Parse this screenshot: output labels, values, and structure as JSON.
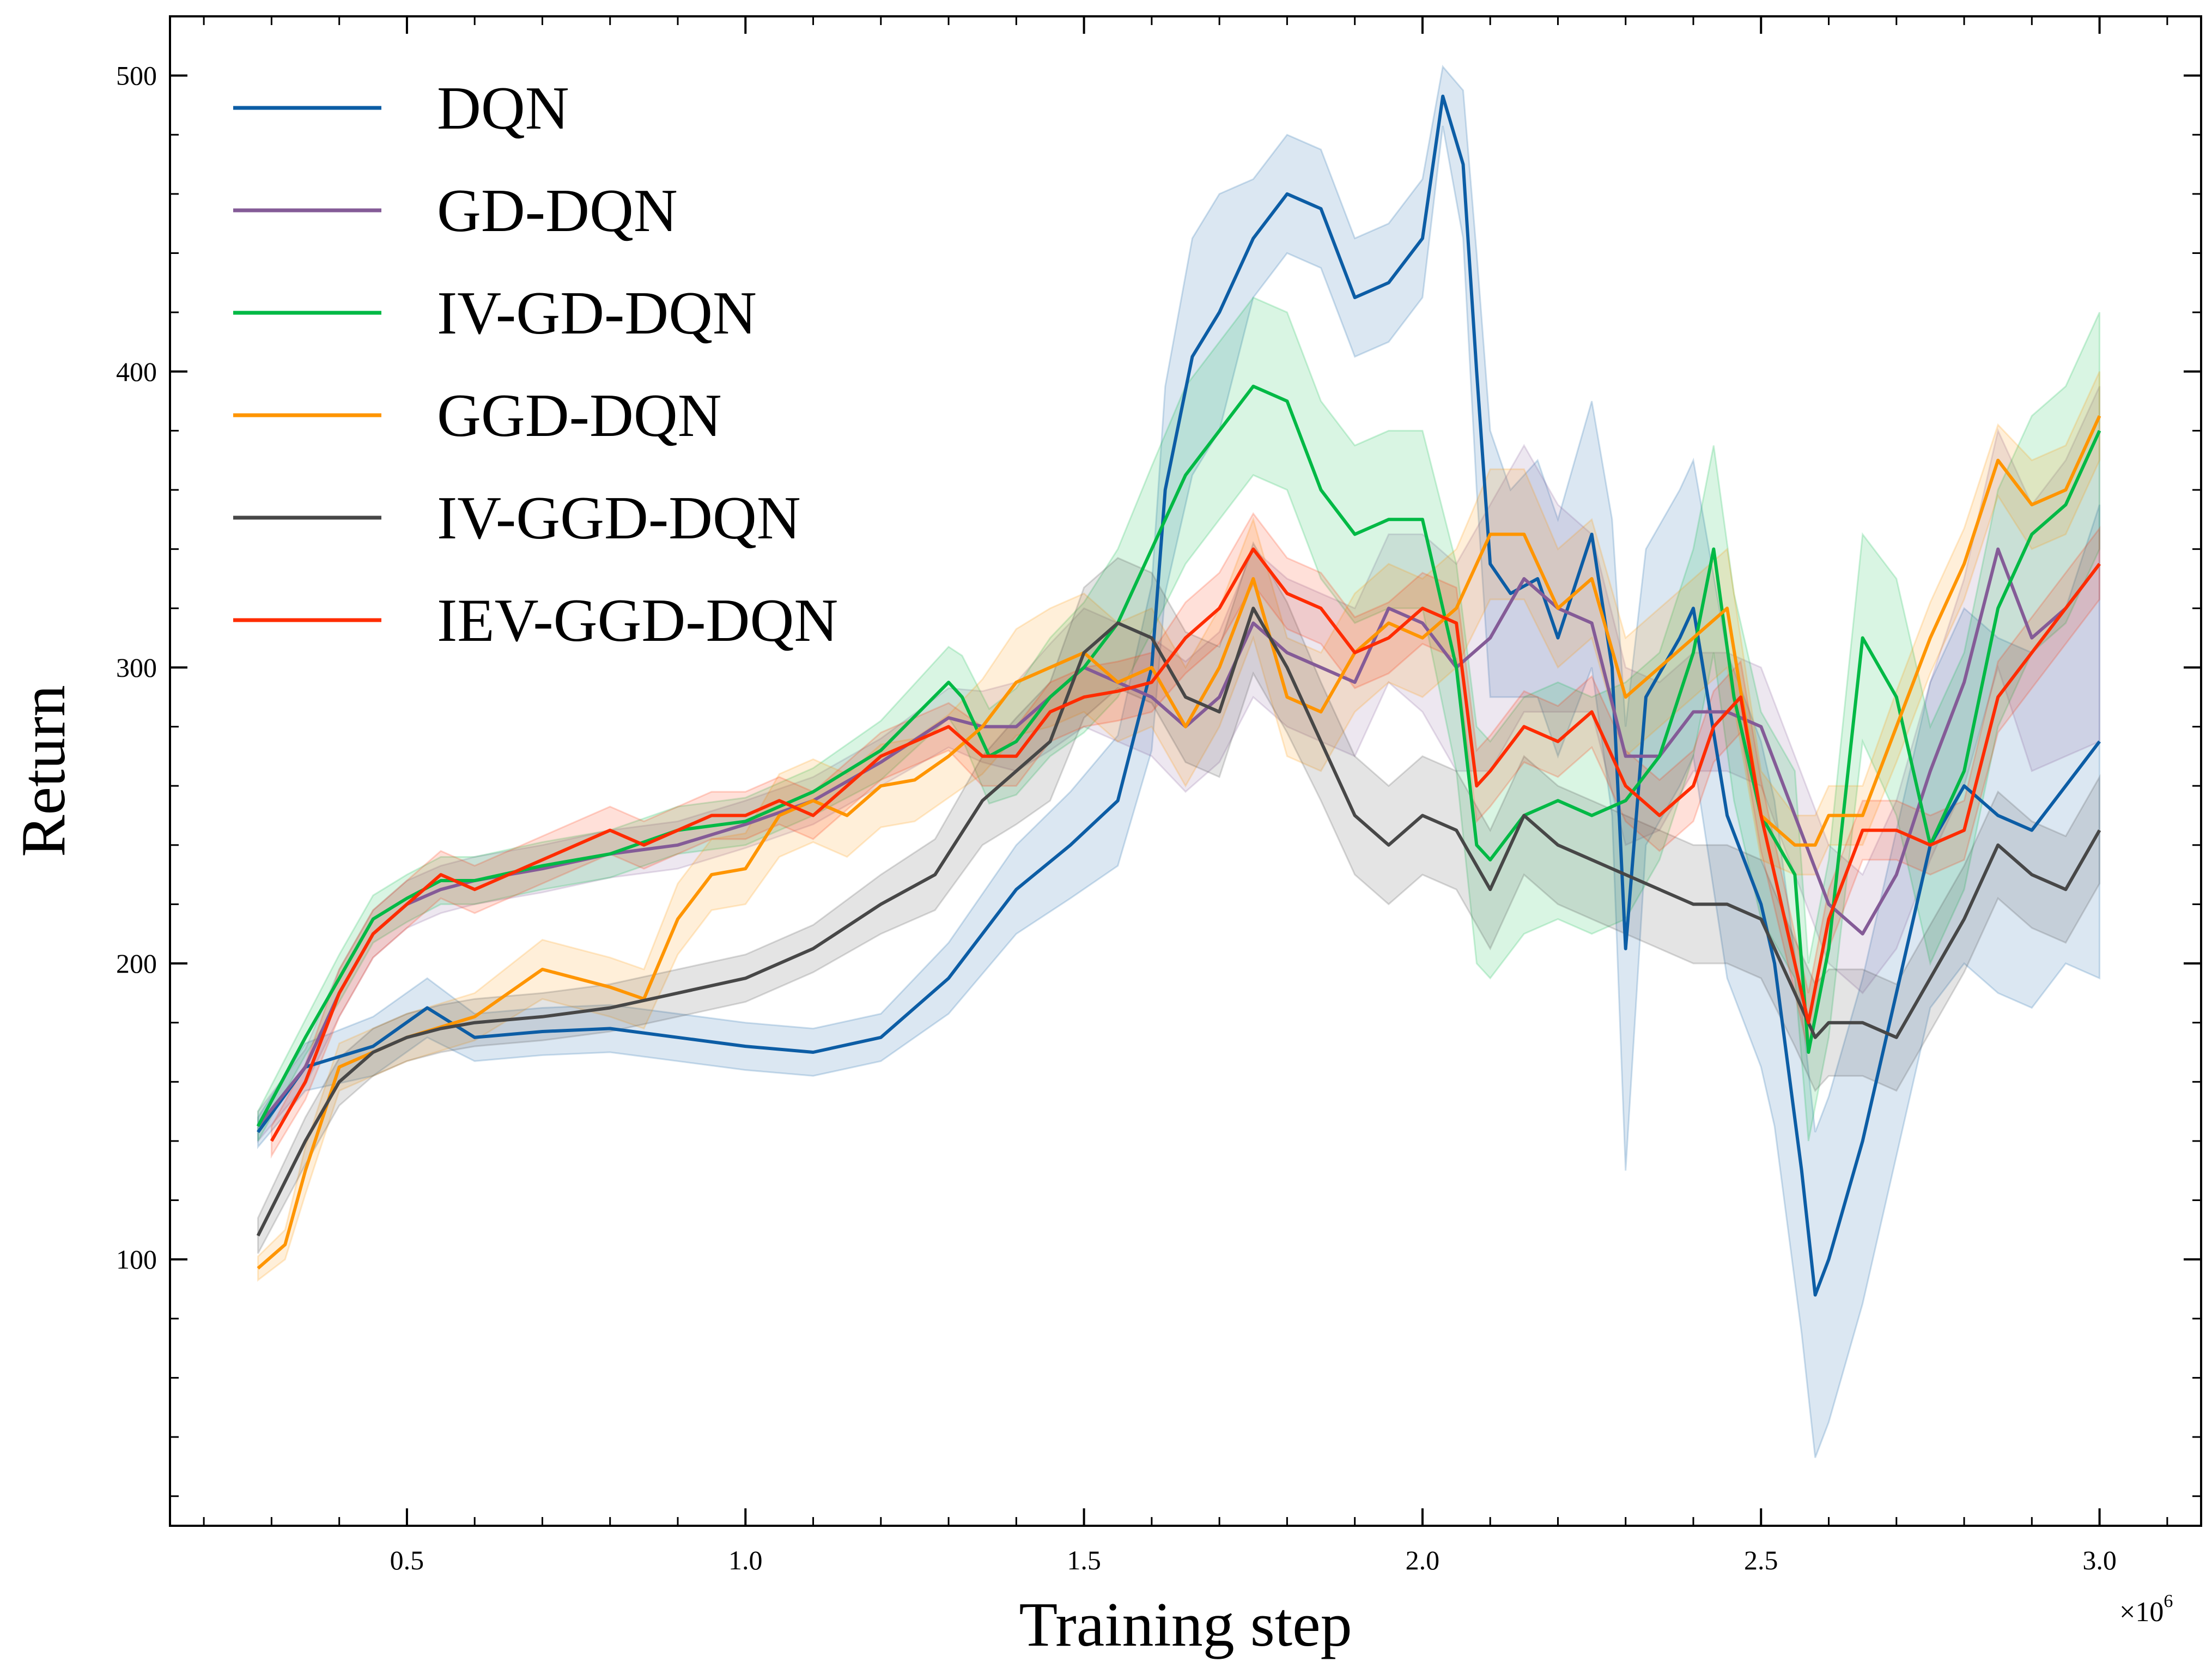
{
  "chart_data": {
    "type": "line",
    "xlabel": "Training step",
    "ylabel": "Return",
    "x_multiplier": "×10",
    "x_multiplier_exp": "6",
    "xlim": [
      150000,
      3150000
    ],
    "ylim": [
      10,
      520
    ],
    "xticks": [
      500000,
      1000000,
      1500000,
      2000000,
      2500000,
      3000000
    ],
    "xtick_labels": [
      "0.5",
      "1.0",
      "1.5",
      "2.0",
      "2.5",
      "3.0"
    ],
    "yticks": [
      100,
      200,
      300,
      400,
      500
    ],
    "ytick_labels": [
      "100",
      "200",
      "300",
      "400",
      "500"
    ],
    "legend_position": "upper-left",
    "grid": false,
    "series": [
      {
        "name": "DQN",
        "color": "#0C5DA5",
        "x": [
          280000,
          350000,
          450000,
          530000,
          600000,
          700000,
          800000,
          900000,
          1000000,
          1100000,
          1200000,
          1300000,
          1400000,
          1480000,
          1550000,
          1600000,
          1620000,
          1660000,
          1700000,
          1750000,
          1800000,
          1850000,
          1900000,
          1950000,
          2000000,
          2030000,
          2060000,
          2080000,
          2100000,
          2130000,
          2170000,
          2200000,
          2250000,
          2280000,
          2300000,
          2330000,
          2380000,
          2400000,
          2450000,
          2500000,
          2520000,
          2560000,
          2580000,
          2600000,
          2650000,
          2700000,
          2750000,
          2800000,
          2850000,
          2900000,
          2950000,
          3000000
        ],
        "y": [
          143,
          165,
          172,
          185,
          175,
          177,
          178,
          175,
          172,
          170,
          175,
          195,
          225,
          240,
          255,
          300,
          360,
          405,
          420,
          445,
          460,
          455,
          425,
          430,
          445,
          493,
          470,
          400,
          335,
          325,
          330,
          310,
          345,
          300,
          205,
          290,
          310,
          320,
          250,
          220,
          200,
          130,
          88,
          100,
          140,
          190,
          240,
          260,
          250,
          245,
          260,
          275
        ],
        "band": [
          5,
          8,
          10,
          10,
          8,
          8,
          8,
          8,
          8,
          8,
          8,
          12,
          15,
          18,
          22,
          28,
          35,
          40,
          40,
          20,
          20,
          20,
          20,
          20,
          20,
          10,
          25,
          40,
          45,
          35,
          40,
          40,
          45,
          50,
          75,
          50,
          50,
          50,
          55,
          55,
          55,
          55,
          55,
          55,
          55,
          55,
          55,
          60,
          60,
          60,
          60,
          80
        ]
      },
      {
        "name": "GD-DQN",
        "color": "#845B97",
        "x": [
          280000,
          350000,
          400000,
          450000,
          500000,
          550000,
          600000,
          700000,
          800000,
          900000,
          1000000,
          1100000,
          1200000,
          1300000,
          1350000,
          1400000,
          1450000,
          1500000,
          1550000,
          1600000,
          1650000,
          1700000,
          1750000,
          1800000,
          1850000,
          1900000,
          1950000,
          2000000,
          2050000,
          2100000,
          2150000,
          2200000,
          2250000,
          2300000,
          2350000,
          2400000,
          2450000,
          2500000,
          2550000,
          2600000,
          2650000,
          2700000,
          2750000,
          2800000,
          2850000,
          2900000,
          2950000,
          3000000
        ],
        "y": [
          145,
          165,
          190,
          210,
          220,
          225,
          228,
          232,
          237,
          240,
          247,
          255,
          268,
          283,
          280,
          280,
          290,
          300,
          295,
          290,
          280,
          290,
          315,
          305,
          300,
          295,
          320,
          315,
          300,
          310,
          330,
          320,
          315,
          270,
          270,
          285,
          285,
          280,
          250,
          220,
          210,
          230,
          265,
          295,
          340,
          310,
          320,
          335
        ],
        "band": [
          5,
          6,
          8,
          8,
          8,
          8,
          8,
          8,
          8,
          8,
          8,
          8,
          8,
          10,
          12,
          15,
          18,
          20,
          20,
          20,
          22,
          22,
          25,
          25,
          25,
          25,
          25,
          30,
          35,
          45,
          45,
          35,
          30,
          30,
          25,
          20,
          20,
          20,
          20,
          20,
          20,
          25,
          30,
          35,
          40,
          45,
          50,
          60
        ]
      },
      {
        "name": "IV-GD-DQN",
        "color": "#00B945",
        "x": [
          280000,
          350000,
          400000,
          450000,
          500000,
          550000,
          600000,
          700000,
          800000,
          900000,
          1000000,
          1100000,
          1200000,
          1300000,
          1320000,
          1360000,
          1400000,
          1450000,
          1500000,
          1550000,
          1600000,
          1650000,
          1700000,
          1750000,
          1800000,
          1850000,
          1900000,
          1950000,
          2000000,
          2050000,
          2080000,
          2100000,
          2150000,
          2200000,
          2250000,
          2300000,
          2350000,
          2400000,
          2430000,
          2460000,
          2500000,
          2550000,
          2570000,
          2600000,
          2650000,
          2700000,
          2750000,
          2800000,
          2850000,
          2900000,
          2950000,
          3000000
        ],
        "y": [
          145,
          175,
          195,
          215,
          222,
          228,
          228,
          233,
          237,
          245,
          248,
          258,
          272,
          295,
          290,
          270,
          275,
          290,
          300,
          315,
          340,
          365,
          380,
          395,
          390,
          360,
          345,
          350,
          350,
          300,
          240,
          235,
          250,
          255,
          250,
          255,
          270,
          305,
          340,
          290,
          250,
          230,
          170,
          205,
          310,
          290,
          240,
          265,
          320,
          345,
          355,
          380
        ],
        "band": [
          5,
          6,
          8,
          8,
          8,
          8,
          8,
          8,
          8,
          8,
          8,
          8,
          10,
          12,
          14,
          16,
          18,
          20,
          22,
          25,
          28,
          30,
          30,
          30,
          30,
          30,
          30,
          30,
          30,
          35,
          40,
          40,
          40,
          40,
          40,
          40,
          35,
          35,
          35,
          35,
          35,
          35,
          30,
          30,
          35,
          40,
          40,
          40,
          40,
          40,
          40,
          40
        ]
      },
      {
        "name": "GGD-DQN",
        "color": "#FF9500",
        "x": [
          280000,
          320000,
          350000,
          400000,
          450000,
          500000,
          600000,
          700000,
          750000,
          800000,
          850000,
          900000,
          950000,
          1000000,
          1050000,
          1100000,
          1150000,
          1200000,
          1250000,
          1300000,
          1350000,
          1400000,
          1450000,
          1500000,
          1550000,
          1600000,
          1650000,
          1700000,
          1750000,
          1800000,
          1850000,
          1900000,
          1950000,
          2000000,
          2050000,
          2100000,
          2150000,
          2200000,
          2250000,
          2300000,
          2350000,
          2400000,
          2450000,
          2500000,
          2550000,
          2580000,
          2600000,
          2650000,
          2700000,
          2750000,
          2800000,
          2850000,
          2900000,
          2950000,
          3000000
        ],
        "y": [
          97,
          105,
          130,
          165,
          170,
          175,
          182,
          198,
          195,
          192,
          188,
          215,
          230,
          232,
          250,
          255,
          250,
          260,
          262,
          270,
          280,
          295,
          300,
          305,
          295,
          300,
          280,
          300,
          330,
          290,
          285,
          305,
          315,
          310,
          320,
          345,
          345,
          320,
          330,
          290,
          300,
          310,
          320,
          250,
          240,
          240,
          250,
          250,
          280,
          310,
          335,
          370,
          355,
          360,
          385
        ],
        "band": [
          4,
          5,
          8,
          8,
          8,
          8,
          8,
          10,
          10,
          10,
          10,
          12,
          12,
          12,
          14,
          14,
          14,
          14,
          14,
          14,
          16,
          18,
          20,
          20,
          20,
          20,
          20,
          20,
          20,
          20,
          20,
          20,
          20,
          20,
          20,
          22,
          22,
          20,
          20,
          20,
          20,
          20,
          20,
          15,
          10,
          10,
          10,
          10,
          12,
          12,
          12,
          12,
          15,
          15,
          15
        ]
      },
      {
        "name": "IV-GGD-DQN",
        "color": "#474747",
        "x": [
          280000,
          350000,
          400000,
          450000,
          500000,
          550000,
          600000,
          700000,
          800000,
          900000,
          1000000,
          1100000,
          1200000,
          1280000,
          1350000,
          1400000,
          1450000,
          1500000,
          1550000,
          1600000,
          1650000,
          1700000,
          1750000,
          1800000,
          1850000,
          1900000,
          1950000,
          2000000,
          2050000,
          2100000,
          2150000,
          2200000,
          2250000,
          2300000,
          2350000,
          2400000,
          2450000,
          2500000,
          2550000,
          2580000,
          2600000,
          2650000,
          2700000,
          2750000,
          2800000,
          2850000,
          2900000,
          2950000,
          3000000
        ],
        "y": [
          108,
          140,
          160,
          170,
          175,
          178,
          180,
          182,
          185,
          190,
          195,
          205,
          220,
          230,
          255,
          265,
          275,
          305,
          315,
          310,
          290,
          285,
          320,
          300,
          275,
          250,
          240,
          250,
          245,
          225,
          250,
          240,
          235,
          230,
          225,
          220,
          220,
          215,
          190,
          175,
          180,
          180,
          175,
          195,
          215,
          240,
          230,
          225,
          245
        ],
        "band": [
          6,
          8,
          8,
          8,
          8,
          8,
          8,
          8,
          8,
          8,
          8,
          8,
          10,
          12,
          15,
          18,
          20,
          22,
          22,
          22,
          22,
          22,
          22,
          22,
          20,
          20,
          20,
          20,
          20,
          20,
          20,
          20,
          20,
          20,
          20,
          20,
          20,
          20,
          18,
          18,
          18,
          18,
          18,
          18,
          18,
          18,
          18,
          18,
          18
        ]
      },
      {
        "name": "IEV-GGD-DQN",
        "color": "#FF2C00",
        "x": [
          300000,
          350000,
          400000,
          450000,
          500000,
          550000,
          600000,
          700000,
          800000,
          850000,
          900000,
          950000,
          1000000,
          1050000,
          1100000,
          1150000,
          1200000,
          1250000,
          1300000,
          1350000,
          1400000,
          1450000,
          1500000,
          1550000,
          1600000,
          1650000,
          1700000,
          1750000,
          1800000,
          1850000,
          1900000,
          1950000,
          2000000,
          2050000,
          2080000,
          2100000,
          2150000,
          2200000,
          2250000,
          2300000,
          2350000,
          2400000,
          2430000,
          2470000,
          2500000,
          2550000,
          2570000,
          2600000,
          2650000,
          2700000,
          2750000,
          2800000,
          2850000,
          2900000,
          2950000,
          3000000
        ],
        "y": [
          140,
          160,
          190,
          210,
          220,
          230,
          225,
          235,
          245,
          240,
          245,
          250,
          250,
          255,
          250,
          260,
          270,
          275,
          280,
          270,
          270,
          285,
          290,
          292,
          295,
          310,
          320,
          340,
          325,
          320,
          305,
          310,
          320,
          315,
          260,
          265,
          280,
          275,
          285,
          260,
          250,
          260,
          280,
          290,
          250,
          200,
          180,
          215,
          245,
          245,
          240,
          245,
          290,
          305,
          320,
          335
        ],
        "band": [
          5,
          6,
          8,
          8,
          8,
          8,
          8,
          8,
          8,
          8,
          8,
          8,
          8,
          8,
          8,
          8,
          8,
          8,
          8,
          10,
          10,
          10,
          10,
          10,
          10,
          12,
          12,
          12,
          12,
          12,
          12,
          12,
          12,
          12,
          12,
          12,
          12,
          12,
          12,
          12,
          12,
          12,
          12,
          12,
          12,
          10,
          10,
          10,
          10,
          10,
          10,
          10,
          12,
          12,
          12,
          12
        ]
      }
    ]
  }
}
